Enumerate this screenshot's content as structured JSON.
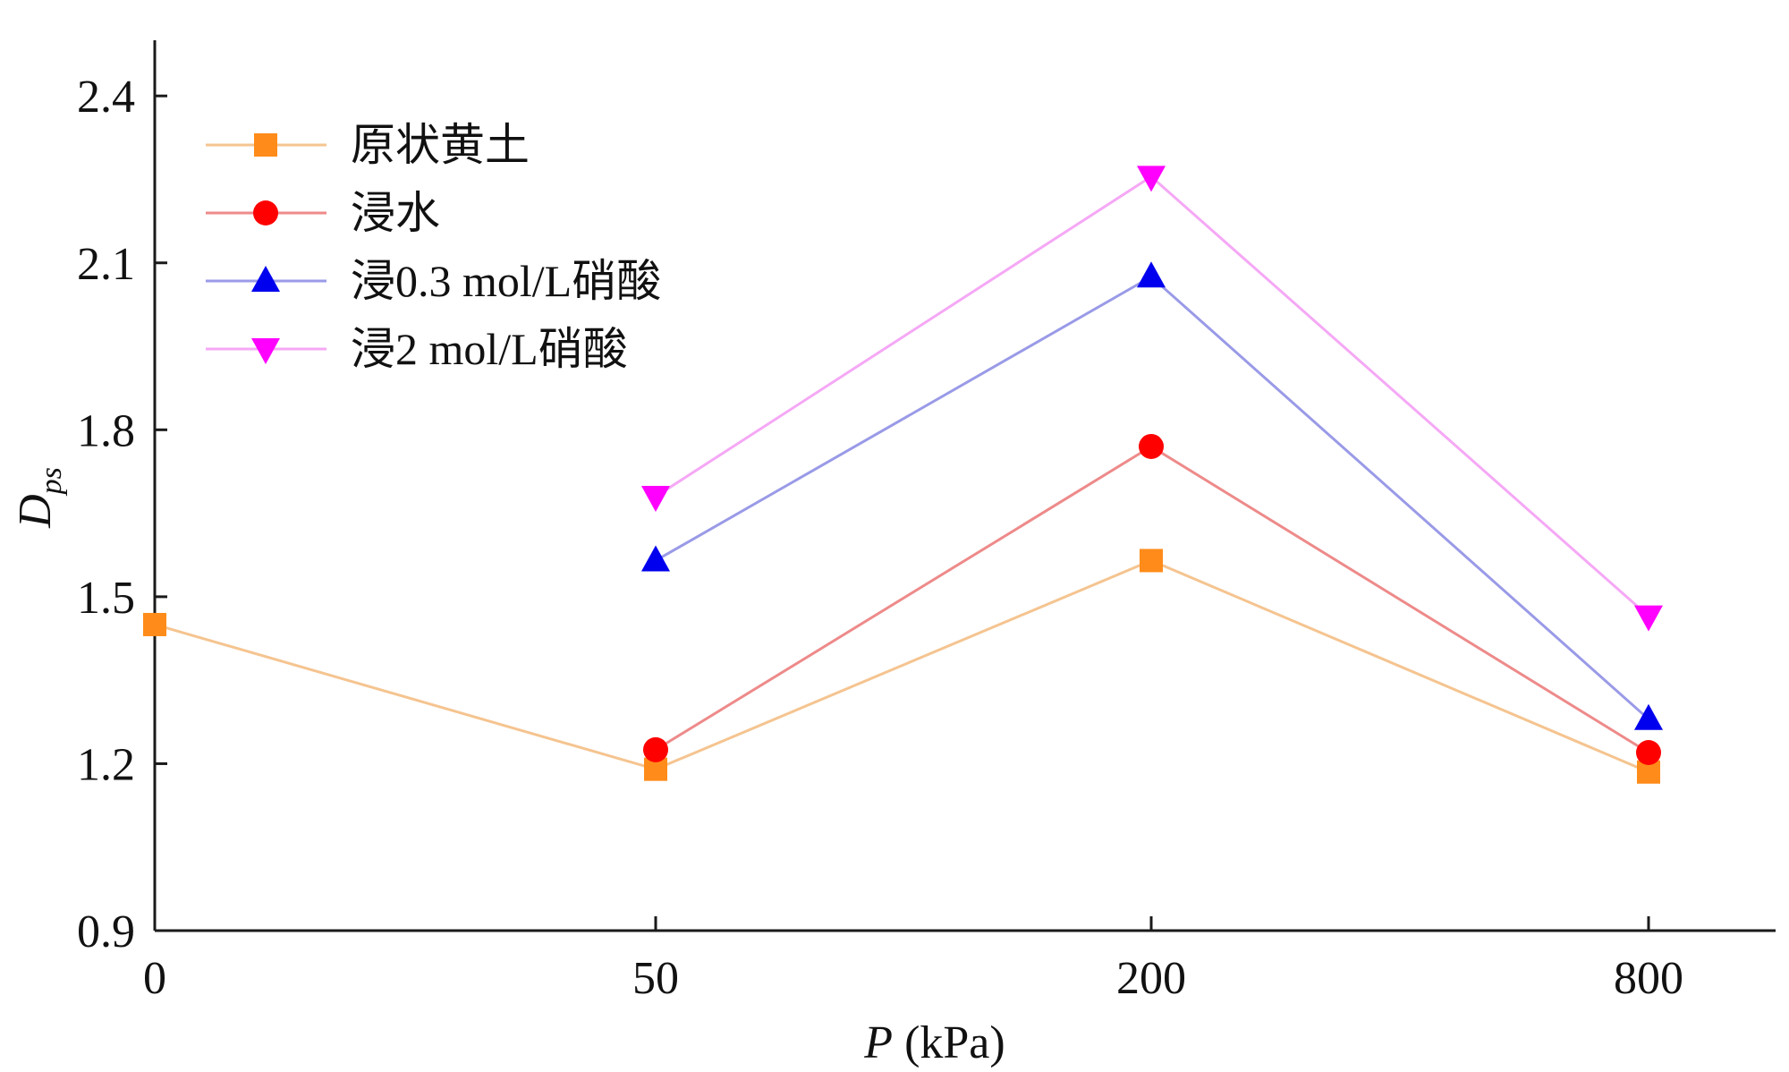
{
  "chart_data": {
    "type": "line",
    "title": "",
    "xlabel": "P (kPa)",
    "xlabel_var": "P",
    "xlabel_unit": " (kPa)",
    "ylabel": "Dps",
    "ylabel_main": "D",
    "ylabel_sub": "ps",
    "categories": [
      "0",
      "50",
      "200",
      "800"
    ],
    "ylim": [
      0.9,
      2.5
    ],
    "yticks": [
      0.9,
      1.2,
      1.5,
      1.8,
      2.1,
      2.4
    ],
    "ytick_labels": [
      "0.9",
      "1.2",
      "1.5",
      "1.8",
      "2.1",
      "2.4"
    ],
    "grid": false,
    "legend_position": "top-left",
    "series": [
      {
        "name": "原状黄土",
        "marker": "square",
        "marker_color": "#ff8c1a",
        "line_color": "#f5c490",
        "values": [
          1.45,
          1.19,
          1.565,
          1.185
        ]
      },
      {
        "name": "浸水",
        "marker": "circle",
        "marker_color": "#ff0000",
        "line_color": "#ee8a8a",
        "values": [
          null,
          1.225,
          1.77,
          1.22
        ]
      },
      {
        "name": "浸0.3 mol/L硝酸",
        "marker": "triangle-up",
        "marker_color": "#0000ee",
        "line_color": "#9a9ae8",
        "values": [
          null,
          1.565,
          2.075,
          1.28
        ]
      },
      {
        "name": "浸2 mol/L硝酸",
        "marker": "triangle-down",
        "marker_color": "#ff00ff",
        "line_color": "#f5a8f5",
        "values": [
          null,
          1.68,
          2.255,
          1.465
        ]
      }
    ]
  }
}
